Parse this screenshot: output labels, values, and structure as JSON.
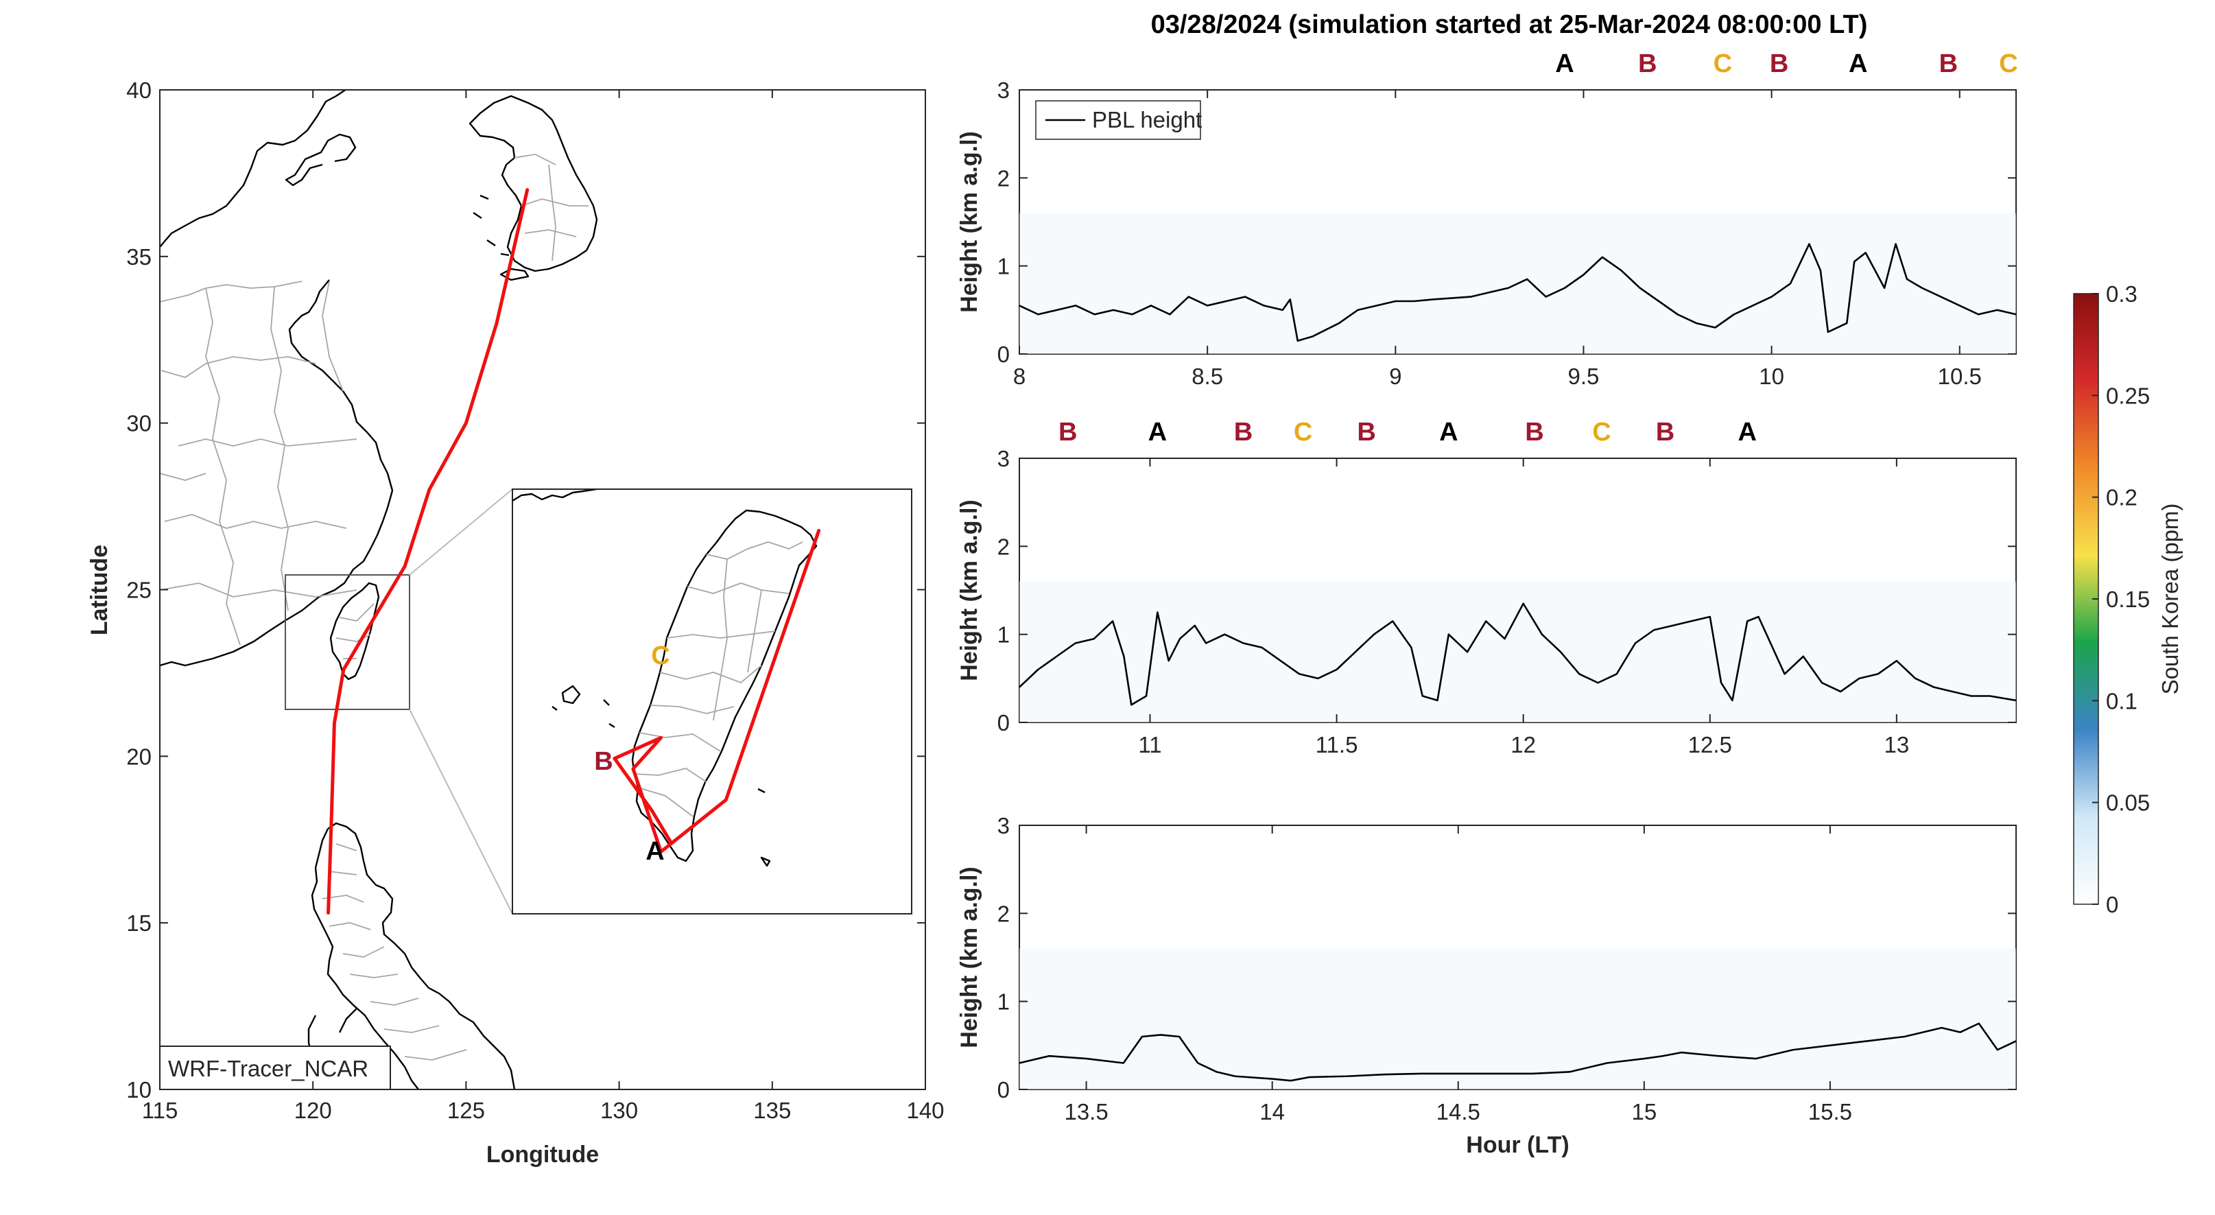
{
  "figure": {
    "title": "03/28/2024 (simulation started at 25-Mar-2024 08:00:00 LT)",
    "model_label": "WRF-Tracer_NCAR",
    "colors": {
      "track": "#f01010",
      "pbl": "#000000",
      "A": "#000000",
      "B": "#a0182f",
      "C": "#e8a917"
    }
  },
  "chart_data": [
    {
      "type": "line",
      "name": "map",
      "xlabel": "Longitude",
      "ylabel": "Latitude",
      "xlim": [
        115,
        140
      ],
      "ylim": [
        10,
        40
      ],
      "xticks": [
        115,
        120,
        125,
        130,
        135,
        140
      ],
      "yticks": [
        10,
        15,
        20,
        25,
        30,
        35,
        40
      ],
      "track": {
        "lon": [
          127.0,
          126.0,
          125.0,
          123.8,
          123.0,
          121.9,
          121.0,
          120.7,
          120.6,
          120.5
        ],
        "lat": [
          37.0,
          33.0,
          30.0,
          28.0,
          25.7,
          24.0,
          22.6,
          21.0,
          18.0,
          15.3
        ]
      },
      "inset_track": {
        "lon": [
          120.9,
          120.7,
          120.3,
          120.8,
          120.5,
          120.8,
          121.5,
          122.5
        ],
        "lat": [
          22.2,
          22.5,
          23.0,
          23.2,
          22.9,
          22.1,
          22.6,
          25.2
        ]
      },
      "inset_labels": [
        "A",
        "B",
        "C"
      ]
    },
    {
      "type": "line",
      "name": "panel-1",
      "xlim": [
        8,
        10.65
      ],
      "ylim": [
        0,
        3
      ],
      "xticks": [
        8,
        8.5,
        9,
        9.5,
        10,
        10.5
      ],
      "yticks": [
        0,
        1,
        2,
        3
      ],
      "ylabel": "Height (km a.g.l)",
      "legend": "PBL height",
      "legend_location": "top-left",
      "markers": [
        {
          "label": "A",
          "x": 9.45
        },
        {
          "label": "B",
          "x": 9.67
        },
        {
          "label": "C",
          "x": 9.87
        },
        {
          "label": "B",
          "x": 10.02
        },
        {
          "label": "A",
          "x": 10.23
        },
        {
          "label": "B",
          "x": 10.47
        },
        {
          "label": "C",
          "x": 10.63
        }
      ],
      "x": [
        8.0,
        8.05,
        8.1,
        8.15,
        8.2,
        8.25,
        8.3,
        8.35,
        8.4,
        8.45,
        8.5,
        8.55,
        8.6,
        8.65,
        8.7,
        8.72,
        8.74,
        8.78,
        8.85,
        8.9,
        9.0,
        9.05,
        9.1,
        9.2,
        9.25,
        9.3,
        9.35,
        9.4,
        9.45,
        9.5,
        9.55,
        9.6,
        9.65,
        9.7,
        9.75,
        9.8,
        9.85,
        9.9,
        9.95,
        10.0,
        10.05,
        10.1,
        10.13,
        10.15,
        10.2,
        10.22,
        10.25,
        10.3,
        10.33,
        10.36,
        10.4,
        10.45,
        10.5,
        10.55,
        10.6,
        10.65
      ],
      "y": [
        0.55,
        0.45,
        0.5,
        0.55,
        0.45,
        0.5,
        0.45,
        0.55,
        0.45,
        0.65,
        0.55,
        0.6,
        0.65,
        0.55,
        0.5,
        0.62,
        0.15,
        0.2,
        0.35,
        0.5,
        0.6,
        0.6,
        0.62,
        0.65,
        0.7,
        0.75,
        0.85,
        0.65,
        0.75,
        0.9,
        1.1,
        0.95,
        0.75,
        0.6,
        0.45,
        0.35,
        0.3,
        0.45,
        0.55,
        0.65,
        0.8,
        1.25,
        0.95,
        0.25,
        0.35,
        1.05,
        1.15,
        0.75,
        1.25,
        0.85,
        0.75,
        0.65,
        0.55,
        0.45,
        0.5,
        0.45
      ]
    },
    {
      "type": "line",
      "name": "panel-2",
      "xlim": [
        10.65,
        13.32
      ],
      "ylim": [
        0,
        3
      ],
      "xticks": [
        11,
        11.5,
        12,
        12.5,
        13
      ],
      "yticks": [
        0,
        1,
        2,
        3
      ],
      "ylabel": "Height (km a.g.l)",
      "markers": [
        {
          "label": "B",
          "x": 10.78
        },
        {
          "label": "A",
          "x": 11.02
        },
        {
          "label": "B",
          "x": 11.25
        },
        {
          "label": "C",
          "x": 11.41
        },
        {
          "label": "B",
          "x": 11.58
        },
        {
          "label": "A",
          "x": 11.8
        },
        {
          "label": "B",
          "x": 12.03
        },
        {
          "label": "C",
          "x": 12.21
        },
        {
          "label": "B",
          "x": 12.38
        },
        {
          "label": "A",
          "x": 12.6
        }
      ],
      "x": [
        10.65,
        10.7,
        10.75,
        10.8,
        10.85,
        10.9,
        10.93,
        10.95,
        10.99,
        11.02,
        11.05,
        11.08,
        11.12,
        11.15,
        11.2,
        11.25,
        11.3,
        11.35,
        11.4,
        11.45,
        11.5,
        11.55,
        11.6,
        11.65,
        11.7,
        11.73,
        11.77,
        11.8,
        11.85,
        11.9,
        11.95,
        12.0,
        12.05,
        12.1,
        12.15,
        12.2,
        12.25,
        12.3,
        12.35,
        12.4,
        12.45,
        12.5,
        12.53,
        12.56,
        12.6,
        12.63,
        12.7,
        12.75,
        12.8,
        12.85,
        12.9,
        12.95,
        13.0,
        13.05,
        13.1,
        13.15,
        13.2,
        13.25,
        13.32
      ],
      "y": [
        0.4,
        0.6,
        0.75,
        0.9,
        0.95,
        1.15,
        0.75,
        0.2,
        0.3,
        1.25,
        0.7,
        0.95,
        1.1,
        0.9,
        1.0,
        0.9,
        0.85,
        0.7,
        0.55,
        0.5,
        0.6,
        0.8,
        1.0,
        1.15,
        0.85,
        0.3,
        0.25,
        1.0,
        0.8,
        1.15,
        0.95,
        1.35,
        1.0,
        0.8,
        0.55,
        0.45,
        0.55,
        0.9,
        1.05,
        1.1,
        1.15,
        1.2,
        0.45,
        0.25,
        1.15,
        1.2,
        0.55,
        0.75,
        0.45,
        0.35,
        0.5,
        0.55,
        0.7,
        0.5,
        0.4,
        0.35,
        0.3,
        0.3,
        0.25
      ]
    },
    {
      "type": "line",
      "name": "panel-3",
      "xlabel": "Hour (LT)",
      "xlim": [
        13.32,
        16.0
      ],
      "ylim": [
        0,
        3
      ],
      "xticks": [
        13.5,
        14,
        14.5,
        15,
        15.5
      ],
      "yticks": [
        0,
        1,
        2,
        3
      ],
      "ylabel": "Height (km a.g.l)",
      "x": [
        13.32,
        13.4,
        13.5,
        13.6,
        13.65,
        13.7,
        13.75,
        13.8,
        13.85,
        13.9,
        14.0,
        14.05,
        14.1,
        14.2,
        14.3,
        14.4,
        14.5,
        14.6,
        14.7,
        14.8,
        14.9,
        15.0,
        15.05,
        15.1,
        15.2,
        15.3,
        15.4,
        15.5,
        15.6,
        15.7,
        15.8,
        15.85,
        15.9,
        15.95,
        16.0
      ],
      "y": [
        0.3,
        0.38,
        0.35,
        0.3,
        0.6,
        0.62,
        0.6,
        0.3,
        0.2,
        0.15,
        0.12,
        0.1,
        0.14,
        0.15,
        0.17,
        0.18,
        0.18,
        0.18,
        0.18,
        0.2,
        0.3,
        0.35,
        0.38,
        0.42,
        0.38,
        0.35,
        0.45,
        0.5,
        0.55,
        0.6,
        0.7,
        0.65,
        0.75,
        0.45,
        0.55
      ]
    },
    {
      "type": "heatmap",
      "name": "colorbar",
      "label": "South Korea (ppm)",
      "range": [
        0,
        0.3
      ],
      "ticks": [
        0,
        0.05,
        0.1,
        0.15,
        0.2,
        0.25,
        0.3
      ],
      "tick_labels": [
        "0",
        "0.05",
        "0.1",
        "0.15",
        "0.2",
        "0.25",
        "0.3"
      ],
      "colormap": [
        "#ffffff",
        "#cfe8f7",
        "#3b84c6",
        "#1ba54a",
        "#f7e14a",
        "#f08b2a",
        "#d42a2a",
        "#8a1010"
      ]
    }
  ]
}
